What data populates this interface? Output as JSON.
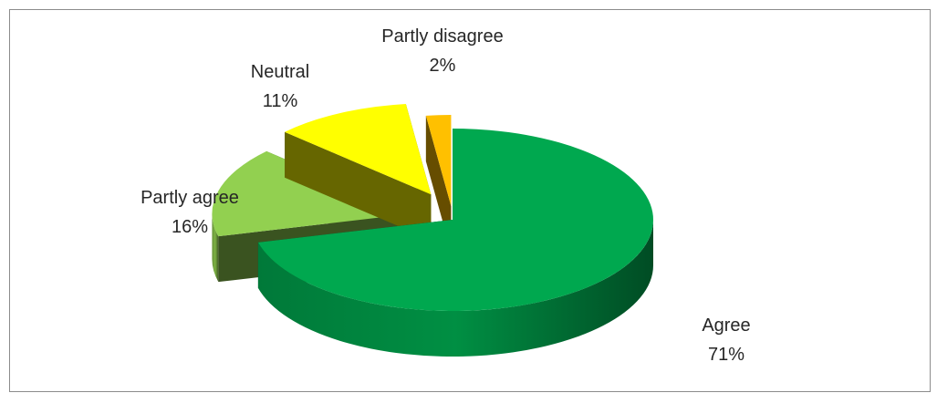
{
  "chart_data": {
    "type": "pie",
    "style": "3d-exploded",
    "title": "",
    "slices": [
      {
        "label": "Agree",
        "value": 71,
        "value_label": "71%",
        "color": "#00a84f"
      },
      {
        "label": "Partly agree",
        "value": 16,
        "value_label": "16%",
        "color": "#92d050"
      },
      {
        "label": "Neutral",
        "value": 11,
        "value_label": "11%",
        "color": "#ffff00"
      },
      {
        "label": "Partly disagree",
        "value": 2,
        "value_label": "2%",
        "color": "#ffc000"
      }
    ]
  }
}
